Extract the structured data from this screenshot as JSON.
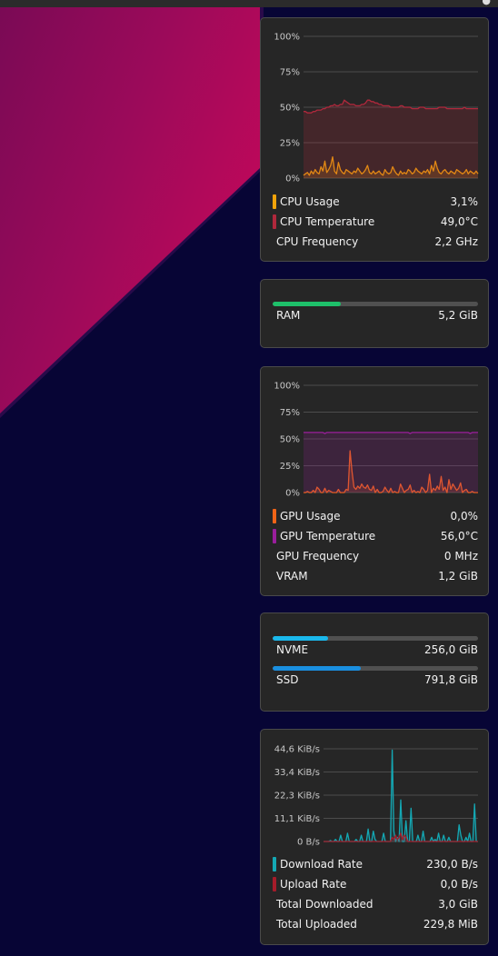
{
  "colors": {
    "cpu_usage": "#f0a30a",
    "cpu_temperature": "#b0283c",
    "ram": "#1ec06a",
    "gpu_usage": "#f06417",
    "gpu_temperature": "#9a1e9c",
    "nvme": "#1ab8ec",
    "ssd": "#1a8fe0",
    "download": "#14a8b4",
    "upload": "#a51c2a"
  },
  "cpu_panel": {
    "chart_data": {
      "type": "line",
      "y_ticks": [
        "100%",
        "75%",
        "50%",
        "25%",
        "0%"
      ],
      "ylim": [
        0,
        100
      ],
      "series": [
        {
          "name": "CPU Usage",
          "values": [
            2,
            3,
            4,
            2,
            5,
            3,
            6,
            4,
            3,
            8,
            5,
            12,
            4,
            6,
            9,
            15,
            5,
            3,
            11,
            6,
            4,
            3,
            6,
            5,
            4,
            3,
            5,
            4,
            7,
            5,
            3,
            4,
            6,
            9,
            4,
            3,
            5,
            3,
            4,
            5,
            3,
            2,
            6,
            4,
            3,
            4,
            8,
            5,
            3,
            2,
            5,
            3,
            4,
            3,
            6,
            5,
            3,
            4,
            7,
            5,
            4,
            3,
            5,
            4,
            6,
            3,
            9,
            5,
            12,
            7,
            4,
            3,
            5,
            6,
            4,
            3,
            5,
            4,
            3,
            6,
            5,
            4,
            3,
            4,
            6,
            3,
            5,
            4,
            3,
            5,
            3
          ]
        },
        {
          "name": "CPU Temperature",
          "values": [
            47,
            47,
            46,
            46,
            46,
            47,
            47,
            48,
            48,
            48,
            49,
            49,
            50,
            50,
            51,
            51,
            52,
            51,
            51,
            52,
            52,
            55,
            54,
            53,
            52,
            52,
            52,
            51,
            51,
            51,
            52,
            52,
            53,
            55,
            55,
            54,
            54,
            53,
            53,
            52,
            52,
            51,
            51,
            51,
            51,
            50,
            50,
            50,
            50,
            50,
            51,
            51,
            50,
            50,
            50,
            50,
            49,
            49,
            49,
            49,
            50,
            50,
            50,
            49,
            49,
            49,
            49,
            49,
            49,
            49,
            50,
            50,
            50,
            50,
            49,
            49,
            49,
            49,
            49,
            49,
            49,
            49,
            49,
            50,
            49,
            49,
            49,
            49,
            49,
            49,
            49
          ]
        }
      ]
    },
    "stats": [
      {
        "label": "CPU Usage",
        "value": "3,1%"
      },
      {
        "label": "CPU Temperature",
        "value": "49,0°C"
      },
      {
        "label": "CPU Frequency",
        "value": "2,2 GHz"
      }
    ]
  },
  "ram_panel": {
    "label": "RAM",
    "value": "5,2 GiB",
    "fraction": 0.33
  },
  "gpu_panel": {
    "chart_data": {
      "type": "line",
      "y_ticks": [
        "100%",
        "75%",
        "50%",
        "25%",
        "0%"
      ],
      "ylim": [
        0,
        100
      ],
      "series": [
        {
          "name": "GPU Usage",
          "values": [
            0,
            0,
            1,
            0,
            0,
            2,
            0,
            5,
            3,
            0,
            0,
            4,
            0,
            2,
            1,
            0,
            0,
            0,
            3,
            0,
            0,
            0,
            3,
            2,
            39,
            20,
            5,
            3,
            6,
            4,
            8,
            5,
            4,
            7,
            3,
            2,
            6,
            0,
            3,
            0,
            0,
            1,
            5,
            2,
            0,
            4,
            0,
            1,
            0,
            0,
            8,
            4,
            0,
            2,
            3,
            7,
            0,
            2,
            0,
            1,
            0,
            5,
            3,
            0,
            2,
            17,
            0,
            4,
            2,
            6,
            3,
            15,
            2,
            5,
            0,
            12,
            3,
            8,
            5,
            2,
            4,
            9,
            0,
            2,
            3,
            0,
            0,
            1,
            0,
            0,
            0
          ]
        },
        {
          "name": "GPU Temperature",
          "values": [
            56,
            56,
            56,
            56,
            56,
            56,
            56,
            56,
            56,
            56,
            56,
            55,
            56,
            56,
            56,
            56,
            56,
            56,
            56,
            56,
            56,
            56,
            56,
            56,
            56,
            56,
            56,
            56,
            56,
            56,
            56,
            56,
            56,
            56,
            56,
            56,
            56,
            56,
            56,
            56,
            56,
            56,
            56,
            56,
            56,
            56,
            56,
            56,
            56,
            56,
            56,
            56,
            56,
            56,
            56,
            55,
            56,
            56,
            56,
            56,
            56,
            56,
            56,
            56,
            56,
            56,
            56,
            56,
            56,
            56,
            56,
            56,
            56,
            56,
            56,
            56,
            56,
            56,
            56,
            56,
            56,
            56,
            56,
            56,
            56,
            56,
            55,
            56,
            56,
            56,
            56
          ]
        }
      ]
    },
    "stats": [
      {
        "label": "GPU Usage",
        "value": "0,0%"
      },
      {
        "label": "GPU Temperature",
        "value": "56,0°C"
      },
      {
        "label": "GPU Frequency",
        "value": "0 MHz"
      },
      {
        "label": "VRAM",
        "value": "1,2 GiB"
      }
    ]
  },
  "disk_panel": {
    "disks": [
      {
        "label": "NVME",
        "value": "256,0 GiB",
        "fraction": 0.27
      },
      {
        "label": "SSD",
        "value": "791,8 GiB",
        "fraction": 0.43
      }
    ]
  },
  "network_panel": {
    "chart_data": {
      "type": "line",
      "y_ticks": [
        "44,6 KiB/s",
        "33,4 KiB/s",
        "22,3 KiB/s",
        "11,1 KiB/s",
        "0 B/s"
      ],
      "ylim": [
        0,
        44.6
      ],
      "series": [
        {
          "name": "Download Rate",
          "values": [
            0,
            0,
            0,
            0,
            0.5,
            0,
            0,
            1,
            0,
            0,
            3,
            0,
            0,
            0,
            4,
            0,
            0,
            0,
            0,
            1,
            0,
            0,
            3,
            0,
            0,
            0,
            6,
            0,
            0,
            5,
            1,
            0,
            0,
            0,
            0,
            4,
            0,
            0,
            0,
            0,
            44,
            5,
            0,
            2,
            0,
            20,
            0,
            0,
            10,
            0,
            0,
            16,
            0,
            0,
            0,
            3,
            0,
            0,
            5,
            0,
            0,
            0,
            0,
            2,
            0,
            1,
            0,
            4,
            0,
            0,
            3,
            0,
            0,
            2,
            0,
            0,
            0,
            0,
            0,
            8,
            3,
            0,
            0,
            2,
            0,
            4,
            0,
            0,
            18,
            0,
            0
          ]
        },
        {
          "name": "Upload Rate",
          "values": [
            0,
            0,
            0,
            0,
            0,
            0,
            0,
            0,
            0,
            0,
            0,
            0,
            0,
            0,
            0,
            0,
            0,
            0,
            0,
            0,
            0,
            0,
            0,
            0,
            0,
            0,
            0,
            0,
            0,
            0,
            0,
            0,
            0,
            0,
            0,
            0,
            0,
            0,
            0,
            0,
            2,
            1,
            3,
            1,
            2,
            4,
            1,
            3,
            2,
            0,
            0,
            0,
            0,
            0,
            0,
            0,
            0,
            0,
            0,
            0,
            0,
            0,
            0,
            0,
            0,
            0,
            0,
            0,
            0,
            0,
            0,
            0,
            0,
            0,
            0,
            0,
            0,
            0,
            0,
            0,
            0,
            0,
            0,
            0,
            0,
            0,
            0,
            0,
            0,
            0,
            0
          ]
        }
      ]
    },
    "stats": [
      {
        "label": "Download Rate",
        "value": "230,0 B/s"
      },
      {
        "label": "Upload Rate",
        "value": "0,0 B/s"
      },
      {
        "label": "Total Downloaded",
        "value": "3,0 GiB"
      },
      {
        "label": "Total Uploaded",
        "value": "229,8 MiB"
      }
    ]
  }
}
